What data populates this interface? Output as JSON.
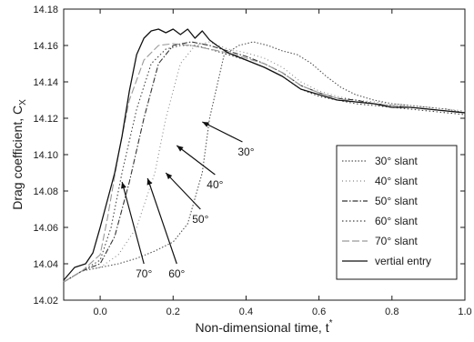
{
  "chart_data": {
    "type": "line",
    "title": "",
    "xlabel": "Non-dimensional time, t",
    "xlabel_superscript": "*",
    "ylabel": "Drag coefficient, C",
    "ylabel_subscript": "X",
    "xlim": [
      -0.1,
      1.0
    ],
    "ylim": [
      14.02,
      14.18
    ],
    "xticks": [
      "0.0",
      "0.2",
      "0.4",
      "0.6",
      "0.8",
      "1.0"
    ],
    "xtick_values": [
      0.0,
      0.2,
      0.4,
      0.6,
      0.8,
      1.0
    ],
    "yticks": [
      "14.02",
      "14.04",
      "14.06",
      "14.08",
      "14.10",
      "14.12",
      "14.14",
      "14.16",
      "14.18"
    ],
    "ytick_values": [
      14.02,
      14.04,
      14.06,
      14.08,
      14.1,
      14.12,
      14.14,
      14.16,
      14.18
    ],
    "grid": false,
    "legend_position": "right",
    "series": [
      {
        "name": "30° slant",
        "color": "#555555",
        "dash": "1.5,2",
        "x": [
          -0.1,
          -0.05,
          0.0,
          0.05,
          0.1,
          0.15,
          0.2,
          0.24,
          0.28,
          0.3,
          0.34,
          0.38,
          0.42,
          0.46,
          0.5,
          0.54,
          0.58,
          0.62,
          0.66,
          0.7,
          0.75,
          0.8,
          0.85,
          0.9,
          0.95,
          1.0
        ],
        "values": [
          14.03,
          14.036,
          14.038,
          14.04,
          14.043,
          14.047,
          14.052,
          14.062,
          14.09,
          14.12,
          14.155,
          14.16,
          14.162,
          14.16,
          14.157,
          14.155,
          14.15,
          14.143,
          14.137,
          14.133,
          14.13,
          14.128,
          14.127,
          14.126,
          14.125,
          14.123
        ]
      },
      {
        "name": "40° slant",
        "color": "#888888",
        "dash": "1,3",
        "x": [
          -0.1,
          -0.05,
          0.0,
          0.05,
          0.1,
          0.15,
          0.18,
          0.22,
          0.26,
          0.3,
          0.35,
          0.4,
          0.45,
          0.5,
          0.55,
          0.6,
          0.65,
          0.7,
          0.75,
          0.8,
          0.85,
          0.9,
          0.95,
          1.0
        ],
        "values": [
          14.03,
          14.036,
          14.038,
          14.045,
          14.06,
          14.09,
          14.12,
          14.15,
          14.16,
          14.162,
          14.158,
          14.156,
          14.153,
          14.148,
          14.14,
          14.135,
          14.132,
          14.13,
          14.129,
          14.128,
          14.127,
          14.126,
          14.125,
          14.124
        ]
      },
      {
        "name": "50° slant",
        "color": "#333333",
        "dash": "6,2,1.5,2",
        "x": [
          -0.1,
          -0.05,
          0.0,
          0.04,
          0.08,
          0.12,
          0.16,
          0.2,
          0.25,
          0.3,
          0.35,
          0.4,
          0.45,
          0.5,
          0.55,
          0.6,
          0.65,
          0.7,
          0.75,
          0.8,
          0.85,
          0.9,
          0.95,
          1.0
        ],
        "values": [
          14.03,
          14.036,
          14.04,
          14.055,
          14.085,
          14.12,
          14.15,
          14.16,
          14.162,
          14.16,
          14.157,
          14.154,
          14.15,
          14.145,
          14.138,
          14.134,
          14.131,
          14.13,
          14.128,
          14.127,
          14.126,
          14.125,
          14.124,
          14.123
        ]
      },
      {
        "name": "60° slant",
        "color": "#444444",
        "dash": "1.5,2.5",
        "x": [
          -0.1,
          -0.05,
          0.0,
          0.03,
          0.06,
          0.1,
          0.14,
          0.18,
          0.22,
          0.26,
          0.3,
          0.35,
          0.4,
          0.45,
          0.5,
          0.55,
          0.6,
          0.65,
          0.7,
          0.75,
          0.8,
          0.85,
          0.9,
          0.95,
          1.0
        ],
        "values": [
          14.03,
          14.036,
          14.042,
          14.06,
          14.09,
          14.125,
          14.15,
          14.158,
          14.16,
          14.16,
          14.158,
          14.155,
          14.152,
          14.148,
          14.143,
          14.136,
          14.132,
          14.13,
          14.128,
          14.127,
          14.126,
          14.125,
          14.124,
          14.123,
          14.122
        ]
      },
      {
        "name": "70° slant",
        "color": "#9a9a9a",
        "dash": "8,3",
        "x": [
          -0.1,
          -0.05,
          0.0,
          0.02,
          0.05,
          0.08,
          0.12,
          0.16,
          0.2,
          0.25,
          0.3,
          0.35,
          0.4,
          0.45,
          0.5,
          0.55,
          0.6,
          0.65,
          0.7,
          0.75,
          0.8,
          0.85,
          0.9,
          0.95,
          1.0
        ],
        "values": [
          14.03,
          14.036,
          14.045,
          14.065,
          14.1,
          14.13,
          14.152,
          14.16,
          14.161,
          14.16,
          14.158,
          14.156,
          14.153,
          14.15,
          14.145,
          14.138,
          14.134,
          14.131,
          14.129,
          14.128,
          14.127,
          14.126,
          14.125,
          14.124,
          14.123
        ]
      },
      {
        "name": "vertial entry",
        "color": "#111111",
        "dash": "",
        "x": [
          -0.1,
          -0.07,
          -0.04,
          -0.02,
          0.0,
          0.02,
          0.04,
          0.06,
          0.08,
          0.1,
          0.12,
          0.14,
          0.16,
          0.18,
          0.2,
          0.22,
          0.24,
          0.26,
          0.28,
          0.3,
          0.32,
          0.35,
          0.4,
          0.45,
          0.5,
          0.55,
          0.6,
          0.65,
          0.7,
          0.75,
          0.8,
          0.85,
          0.9,
          0.95,
          1.0
        ],
        "values": [
          14.031,
          14.038,
          14.04,
          14.046,
          14.06,
          14.075,
          14.09,
          14.11,
          14.135,
          14.155,
          14.164,
          14.168,
          14.169,
          14.167,
          14.169,
          14.166,
          14.169,
          14.164,
          14.168,
          14.163,
          14.16,
          14.156,
          14.152,
          14.148,
          14.143,
          14.136,
          14.133,
          14.13,
          14.129,
          14.128,
          14.126,
          14.126,
          14.125,
          14.124,
          14.123
        ]
      }
    ],
    "annotations": [
      {
        "text": "30°",
        "tail": [
          0.39,
          14.107
        ],
        "head": [
          0.28,
          14.118
        ]
      },
      {
        "text": "40°",
        "tail": [
          0.315,
          14.089
        ],
        "head": [
          0.21,
          14.105
        ]
      },
      {
        "text": "50°",
        "tail": [
          0.275,
          14.07
        ],
        "head": [
          0.18,
          14.09
        ]
      },
      {
        "text": "60°",
        "tail": [
          0.21,
          14.04
        ],
        "head": [
          0.13,
          14.087
        ]
      },
      {
        "text": "70°",
        "tail": [
          0.12,
          14.04
        ],
        "head": [
          0.06,
          14.085
        ]
      }
    ],
    "legend": [
      {
        "label": "30° slant",
        "series": 0
      },
      {
        "label": "40° slant",
        "series": 1
      },
      {
        "label": "50° slant",
        "series": 2
      },
      {
        "label": "60° slant",
        "series": 3
      },
      {
        "label": "70° slant",
        "series": 4
      },
      {
        "label": "vertial entry",
        "series": 5
      }
    ]
  }
}
